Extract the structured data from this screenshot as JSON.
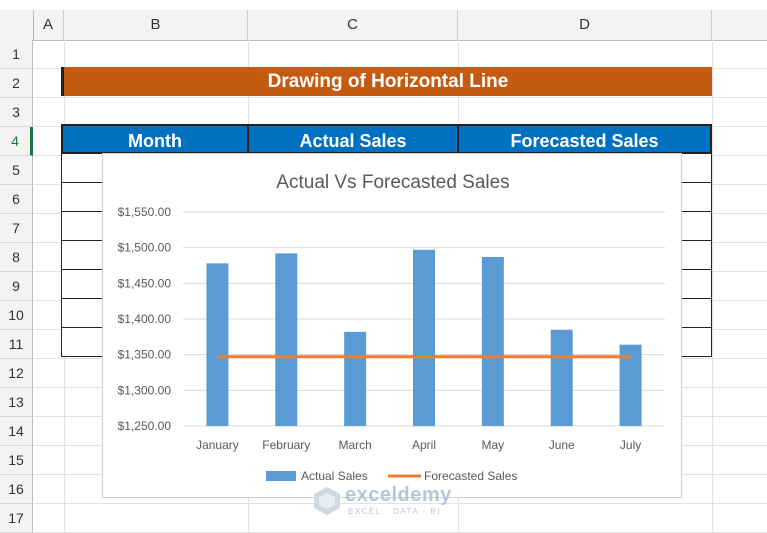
{
  "sheet": {
    "columns": [
      "A",
      "B",
      "C",
      "D"
    ],
    "rows": [
      "1",
      "2",
      "3",
      "4",
      "5",
      "6",
      "7",
      "8",
      "9",
      "10",
      "11",
      "12",
      "13",
      "14",
      "15",
      "16",
      "17"
    ],
    "selected_row": "4",
    "title": "Drawing of Horizontal Line",
    "table_headers": [
      "Month",
      "Actual Sales",
      "Forecasted Sales"
    ],
    "colors": {
      "title_fill": "#c55a11",
      "header_fill": "#0070c0",
      "bar": "#5b9bd5",
      "line": "#ed7d31"
    }
  },
  "chart_data": {
    "type": "bar",
    "title": "Actual Vs Forecasted Sales",
    "categories": [
      "January",
      "February",
      "March",
      "April",
      "May",
      "June",
      "July"
    ],
    "series": [
      {
        "name": "Actual Sales",
        "type": "bar",
        "values": [
          1478,
          1492,
          1382,
          1497,
          1487,
          1385,
          1364
        ]
      },
      {
        "name": "Forecasted Sales",
        "type": "line",
        "values": [
          1347,
          1347,
          1347,
          1347,
          1347,
          1347,
          1347
        ]
      }
    ],
    "yticks": [
      "$1,250.00",
      "$1,300.00",
      "$1,350.00",
      "$1,400.00",
      "$1,450.00",
      "$1,500.00",
      "$1,550.00"
    ],
    "ylim": [
      1250,
      1550
    ],
    "grid": true,
    "legend": "bottom"
  },
  "watermark": {
    "name": "exceldemy",
    "tagline": "EXCEL · DATA · BI"
  }
}
